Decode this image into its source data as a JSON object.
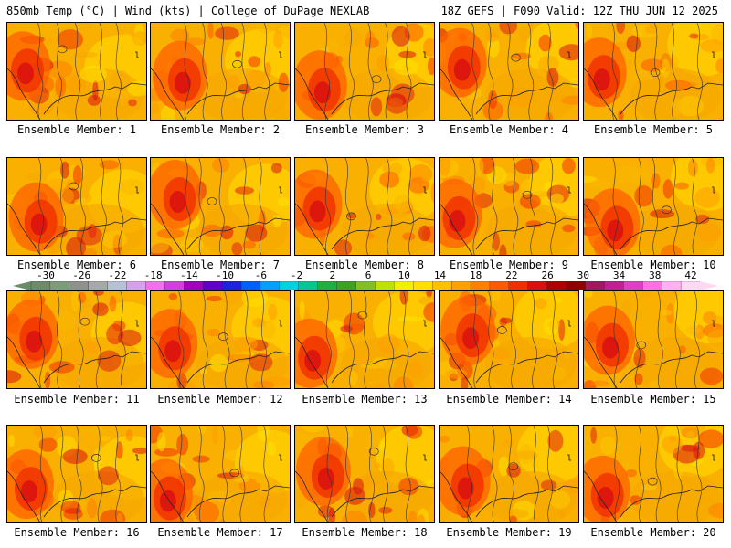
{
  "header": {
    "left": "850mb Temp (°C) | Wind (kts) | College of DuPage NEXLAB",
    "right": "18Z GEFS | F090 Valid: 12Z THU JUN 12 2025"
  },
  "panels": [
    {
      "label": "Ensemble Member: 1"
    },
    {
      "label": "Ensemble Member: 2"
    },
    {
      "label": "Ensemble Member: 3"
    },
    {
      "label": "Ensemble Member: 4"
    },
    {
      "label": "Ensemble Member: 5"
    },
    {
      "label": "Ensemble Member: 6"
    },
    {
      "label": "Ensemble Member: 7"
    },
    {
      "label": "Ensemble Member: 8"
    },
    {
      "label": "Ensemble Member: 9"
    },
    {
      "label": "Ensemble Member: 10"
    },
    {
      "label": "Ensemble Member: 11"
    },
    {
      "label": "Ensemble Member: 12"
    },
    {
      "label": "Ensemble Member: 13"
    },
    {
      "label": "Ensemble Member: 14"
    },
    {
      "label": "Ensemble Member: 15"
    },
    {
      "label": "Ensemble Member: 16"
    },
    {
      "label": "Ensemble Member: 17"
    },
    {
      "label": "Ensemble Member: 18"
    },
    {
      "label": "Ensemble Member: 19"
    },
    {
      "label": "Ensemble Member: 20"
    }
  ],
  "colorbar": {
    "ticks": [
      "-30",
      "-26",
      "-22",
      "-18",
      "-14",
      "-10",
      "-6",
      "-2",
      "2",
      "6",
      "10",
      "14",
      "18",
      "22",
      "26",
      "30",
      "34",
      "38",
      "42"
    ],
    "colors": [
      "#6e8a6e",
      "#7f9a7f",
      "#909090",
      "#a8a8a8",
      "#b8c0d8",
      "#d8a0e8",
      "#f070f0",
      "#d040e0",
      "#a000c0",
      "#6000d0",
      "#2020e0",
      "#0060ff",
      "#00a0ff",
      "#00d0e0",
      "#00c890",
      "#20b040",
      "#40a020",
      "#80c020",
      "#c0e000",
      "#f0f000",
      "#ffe000",
      "#ffc000",
      "#ffa000",
      "#ff8000",
      "#ff5a00",
      "#f03000",
      "#d81010",
      "#b00000",
      "#900000",
      "#a01860",
      "#c02090",
      "#e040c0",
      "#ff70e0",
      "#ffb0f0",
      "#ffd8f8"
    ]
  }
}
